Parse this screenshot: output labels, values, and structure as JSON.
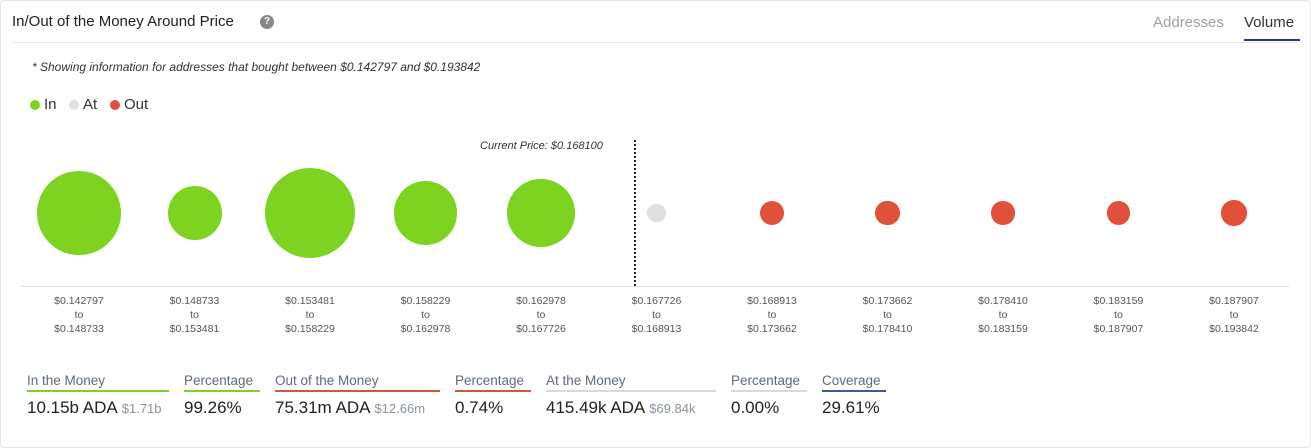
{
  "header": {
    "title": "In/Out of the Money Around Price",
    "help_icon": "question-circle-icon",
    "tabs": [
      {
        "label": "Addresses",
        "active": false
      },
      {
        "label": "Volume",
        "active": true
      }
    ]
  },
  "note": "* Showing information for addresses that bought between $0.142797 and $0.193842",
  "legend": [
    {
      "label": "In",
      "color": "#7ed321"
    },
    {
      "label": "At",
      "color": "#e0e0e0"
    },
    {
      "label": "Out",
      "color": "#e0503a"
    }
  ],
  "current_price_label": "Current Price: $0.168100",
  "chart_data": {
    "type": "scatter",
    "description_source": "bubble size indicates relative volume per price range",
    "current_price": 0.1681,
    "ranges": [
      {
        "from": "$0.142797",
        "to_word": "to",
        "to": "$0.148733",
        "status": "in",
        "relative_size": 0.93
      },
      {
        "from": "$0.148733",
        "to_word": "to",
        "to": "$0.153481",
        "status": "in",
        "relative_size": 0.6
      },
      {
        "from": "$0.153481",
        "to_word": "to",
        "to": "$0.158229",
        "status": "in",
        "relative_size": 1.0
      },
      {
        "from": "$0.158229",
        "to_word": "to",
        "to": "$0.162978",
        "status": "in",
        "relative_size": 0.71
      },
      {
        "from": "$0.162978",
        "to_word": "to",
        "to": "$0.167726",
        "status": "in",
        "relative_size": 0.75
      },
      {
        "from": "$0.167726",
        "to_word": "to",
        "to": "$0.168913",
        "status": "at",
        "relative_size": 0.21
      },
      {
        "from": "$0.168913",
        "to_word": "to",
        "to": "$0.173662",
        "status": "out",
        "relative_size": 0.27
      },
      {
        "from": "$0.173662",
        "to_word": "to",
        "to": "$0.178410",
        "status": "out",
        "relative_size": 0.27
      },
      {
        "from": "$0.178410",
        "to_word": "to",
        "to": "$0.183159",
        "status": "out",
        "relative_size": 0.26
      },
      {
        "from": "$0.183159",
        "to_word": "to",
        "to": "$0.187907",
        "status": "out",
        "relative_size": 0.26
      },
      {
        "from": "$0.187907",
        "to_word": "to",
        "to": "$0.193842",
        "status": "out",
        "relative_size": 0.28
      }
    ]
  },
  "stats": [
    {
      "label": "In the Money",
      "value": "10.15b ADA",
      "sub": "$1.71b",
      "accent": "#7ed321"
    },
    {
      "label": "Percentage",
      "value": "99.26%",
      "sub": "",
      "accent": "#7ed321"
    },
    {
      "label": "Out of the Money",
      "value": "75.31m ADA",
      "sub": "$12.66m",
      "accent": "#d0583f"
    },
    {
      "label": "Percentage",
      "value": "0.74%",
      "sub": "",
      "accent": "#d0583f"
    },
    {
      "label": "At the Money",
      "value": "415.49k ADA",
      "sub": "$69.84k",
      "accent": "#d9d9d9"
    },
    {
      "label": "Percentage",
      "value": "0.00%",
      "sub": "",
      "accent": "#d9d9d9"
    },
    {
      "label": "Coverage",
      "value": "29.61%",
      "sub": "",
      "accent": "#3d5a99"
    }
  ],
  "colors": {
    "in": "#7ed321",
    "at": "#e0e0e0",
    "out": "#e0503a"
  }
}
